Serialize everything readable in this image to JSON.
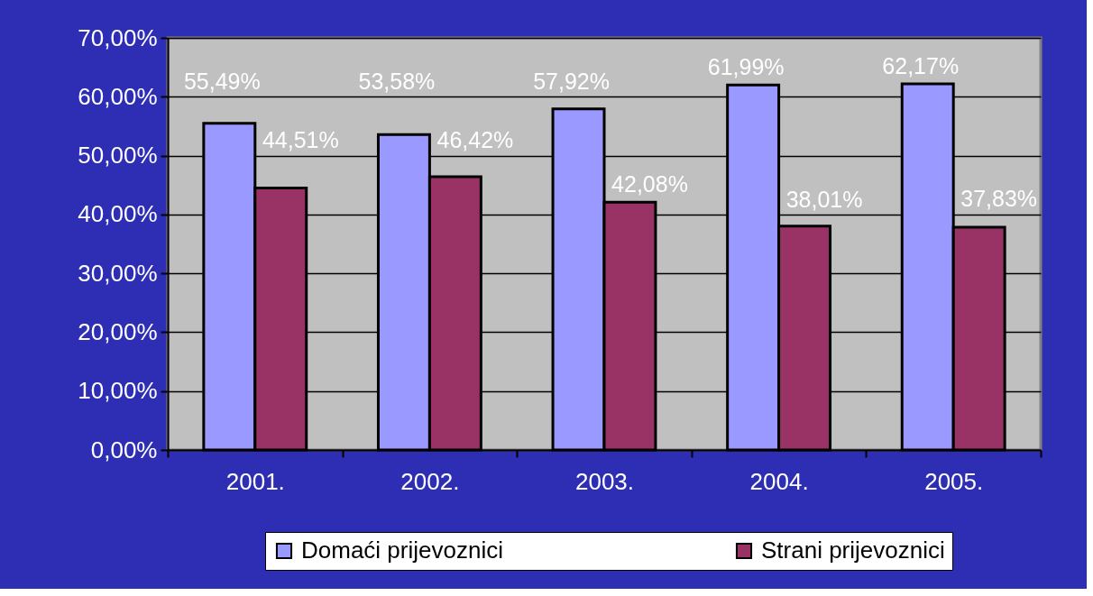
{
  "chart_data": {
    "type": "bar",
    "categories": [
      "2001.",
      "2002.",
      "2003.",
      "2004.",
      "2005."
    ],
    "series": [
      {
        "name": "Domaći prijevoznici",
        "color": "#9999ff",
        "values": [
          55.49,
          53.58,
          57.92,
          61.99,
          62.17
        ],
        "value_labels": [
          "55,49%",
          "53,58%",
          "57,92%",
          "61,99%",
          "62,17%"
        ]
      },
      {
        "name": "Strani prijevoznici",
        "color": "#993366",
        "values": [
          44.51,
          46.42,
          42.08,
          38.01,
          37.83
        ],
        "value_labels": [
          "44,51%",
          "46,42%",
          "42,08%",
          "38,01%",
          "37,83%"
        ]
      }
    ],
    "ylim": [
      0,
      70
    ],
    "yticks": [
      {
        "value": 0,
        "label": "0,00%"
      },
      {
        "value": 10,
        "label": "10,00%"
      },
      {
        "value": 20,
        "label": "20,00%"
      },
      {
        "value": 30,
        "label": "30,00%"
      },
      {
        "value": 40,
        "label": "40,00%"
      },
      {
        "value": 50,
        "label": "50,00%"
      },
      {
        "value": 60,
        "label": "60,00%"
      },
      {
        "value": 70,
        "label": "70,00%"
      }
    ],
    "grid": "y",
    "legend": "bottom"
  }
}
